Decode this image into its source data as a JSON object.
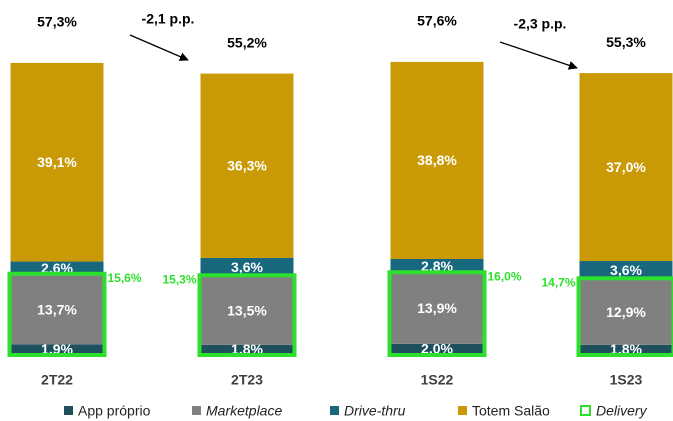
{
  "chart_data": {
    "type": "stacked_bar",
    "categories": [
      "2T22",
      "2T23",
      "1S22",
      "1S23"
    ],
    "series": [
      {
        "name": "App próprio",
        "color": "#1d4f5c",
        "values": [
          1.9,
          1.8,
          2.0,
          1.8
        ],
        "value_labels": [
          "1,9%",
          "1,8%",
          "2,0%",
          "1,8%"
        ]
      },
      {
        "name": "Marketplace",
        "color": "#808080",
        "values": [
          13.7,
          13.5,
          13.9,
          12.9
        ],
        "value_labels": [
          "13,7%",
          "13,5%",
          "13,9%",
          "12,9%"
        ]
      },
      {
        "name": "Drive-thru",
        "color": "#17687c",
        "values": [
          2.6,
          3.6,
          2.8,
          3.6
        ],
        "value_labels": [
          "2,6%",
          "3,6%",
          "2,8%",
          "3,6%"
        ]
      },
      {
        "name": "Totem Salão",
        "color": "#c99a06",
        "values": [
          39.1,
          36.3,
          38.8,
          37.0
        ],
        "value_labels": [
          "39,1%",
          "36,3%",
          "38,8%",
          "37,0%"
        ]
      }
    ],
    "totals": {
      "values": [
        57.3,
        55.2,
        57.6,
        55.3
      ],
      "value_labels": [
        "57,3%",
        "55,2%",
        "57,6%",
        "55,3%"
      ]
    },
    "delivery": {
      "name": "Delivery",
      "color": "#2ee02e",
      "values": [
        15.6,
        15.3,
        16.0,
        14.7
      ],
      "value_labels": [
        "15,6%",
        "15,3%",
        "16,0%",
        "14,7%"
      ]
    },
    "annotations": [
      "-2,1 p.p.",
      "-2,3 p.p."
    ]
  }
}
